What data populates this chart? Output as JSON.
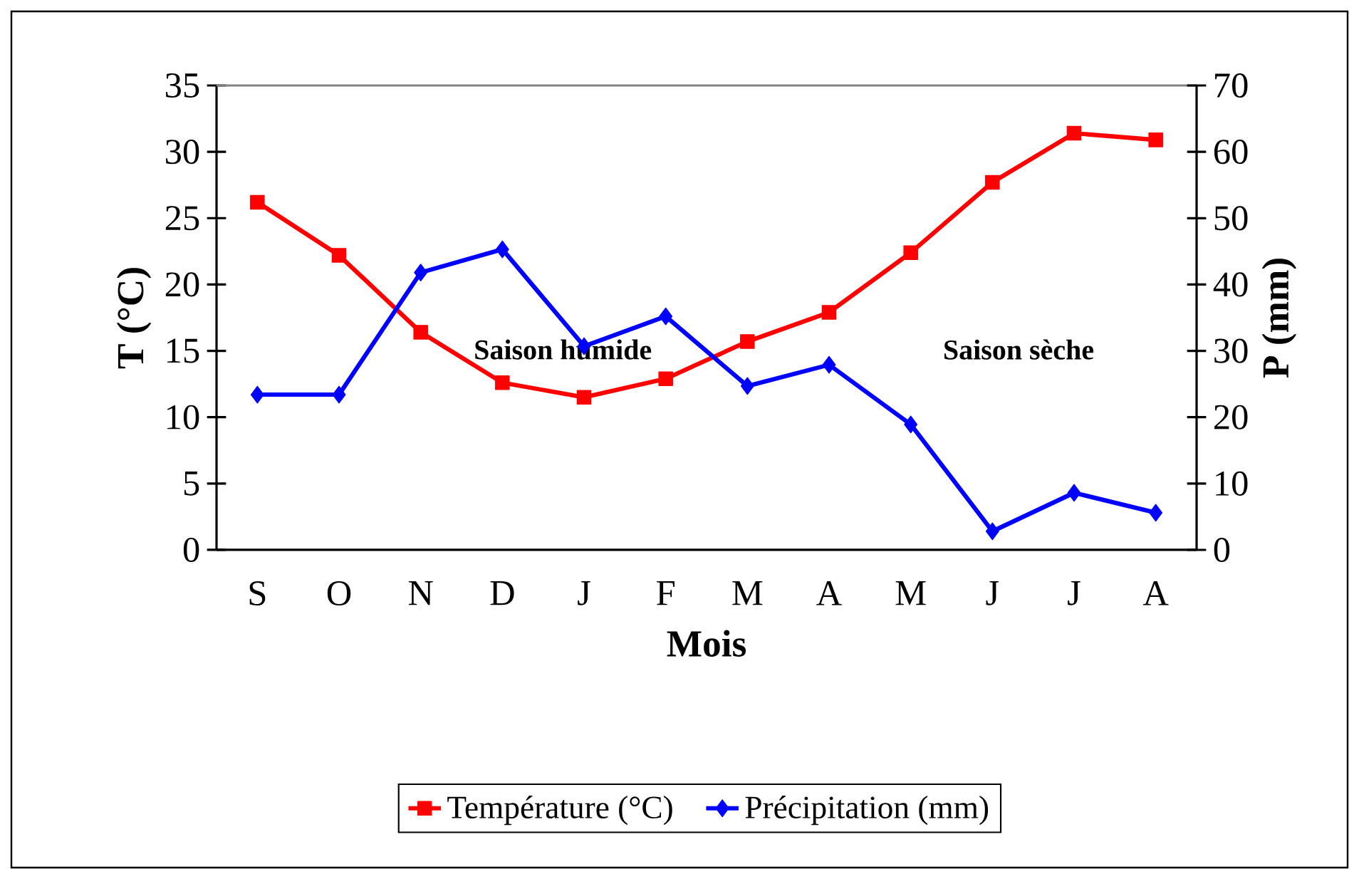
{
  "chart_data": {
    "type": "line",
    "categories": [
      "S",
      "O",
      "N",
      "D",
      "J",
      "F",
      "M",
      "A",
      "M",
      "J",
      "J",
      "A"
    ],
    "series": [
      {
        "name": "Température (°C)",
        "color": "#ff0000",
        "marker": "square",
        "values": [
          26.2,
          22.2,
          16.4,
          12.6,
          11.5,
          12.9,
          15.7,
          17.9,
          22.4,
          27.7,
          31.4,
          30.9
        ]
      },
      {
        "name": "Précipitation (mm)",
        "color": "#0000ff",
        "marker": "diamond",
        "axis": "y2",
        "values": [
          23.4,
          23.4,
          41.8,
          45.3,
          30.7,
          35.2,
          24.7,
          27.9,
          18.9,
          2.8,
          8.6,
          5.6
        ]
      }
    ],
    "xlabel": "Mois",
    "ylabel": "T (°C)",
    "y2label": "P (mm)",
    "ylim": [
      0,
      35
    ],
    "yticks": [
      0,
      5,
      10,
      15,
      20,
      25,
      30,
      35
    ],
    "y2lim": [
      0,
      70
    ],
    "y2ticks": [
      0,
      10,
      20,
      30,
      40,
      50,
      60,
      70
    ],
    "annotations": [
      "Saison humide",
      "Saison sèche"
    ],
    "legend": "bottom",
    "line_style": "solid"
  }
}
